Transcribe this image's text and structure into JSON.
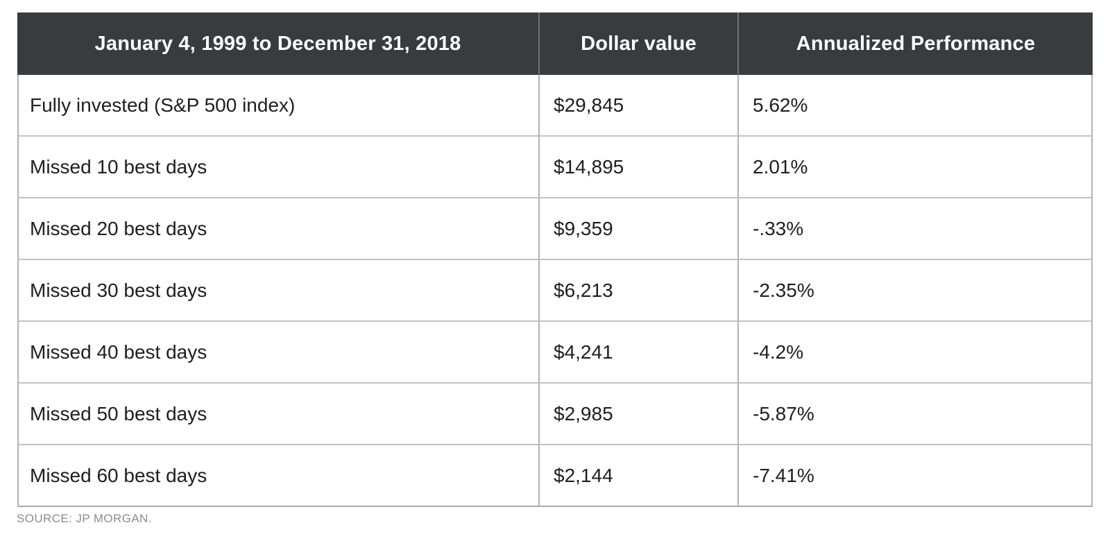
{
  "table": {
    "columns": [
      {
        "label": "January 4, 1999 to December 31, 2018"
      },
      {
        "label": "Dollar value"
      },
      {
        "label": "Annualized Performance"
      }
    ],
    "rows": [
      {
        "scenario": "Fully invested (S&P 500 index)",
        "dollar_value": "$29,845",
        "annualized_performance": "5.62%"
      },
      {
        "scenario": "Missed 10 best days",
        "dollar_value": "$14,895",
        "annualized_performance": "2.01%"
      },
      {
        "scenario": "Missed 20 best days",
        "dollar_value": "$9,359",
        "annualized_performance": "-.33%"
      },
      {
        "scenario": "Missed 30 best days",
        "dollar_value": "$6,213",
        "annualized_performance": "-2.35%"
      },
      {
        "scenario": "Missed 40 best days",
        "dollar_value": "$4,241",
        "annualized_performance": "-4.2%"
      },
      {
        "scenario": "Missed 50 best days",
        "dollar_value": "$2,985",
        "annualized_performance": "-5.87%"
      },
      {
        "scenario": "Missed 60 best days",
        "dollar_value": "$2,144",
        "annualized_performance": "-7.41%"
      }
    ]
  },
  "source": "SOURCE: JP MORGAN.",
  "colors": {
    "header_background": "#393c3f",
    "header_text": "#ffffff",
    "body_text": "#1e1e20",
    "border": "#b2b2b2",
    "row_separator": "#c3c3c3",
    "source_text": "#8b8b8b"
  },
  "chart_data": {
    "type": "table",
    "title": "January 4, 1999 to December 31, 2018",
    "columns": [
      "January 4, 1999 to December 31, 2018",
      "Dollar value",
      "Annualized Performance"
    ],
    "rows": [
      [
        "Fully invested (S&P 500 index)",
        "$29,845",
        "5.62%"
      ],
      [
        "Missed 10 best days",
        "$14,895",
        "2.01%"
      ],
      [
        "Missed 20 best days",
        "$9,359",
        "-.33%"
      ],
      [
        "Missed 30 best days",
        "$6,213",
        "-2.35%"
      ],
      [
        "Missed 40 best days",
        "$4,241",
        "-4.2%"
      ],
      [
        "Missed 50 best days",
        "$2,985",
        "-5.87%"
      ],
      [
        "Missed 60 best days",
        "$2,144",
        "-7.41%"
      ]
    ],
    "dollar_values_numeric": [
      29845,
      14895,
      9359,
      6213,
      4241,
      2985,
      2144
    ],
    "annualized_performance_pct": [
      5.62,
      2.01,
      -0.33,
      -2.35,
      -4.2,
      -5.87,
      -7.41
    ],
    "source": "SOURCE: JP MORGAN."
  }
}
